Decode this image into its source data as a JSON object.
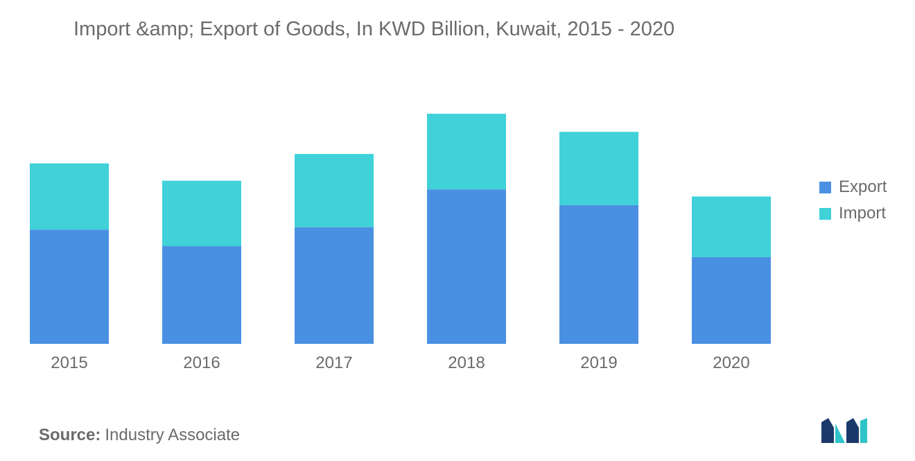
{
  "title": "Import &amp; Export of Goods, In KWD Billion,  Kuwait, 2015 - 2020",
  "source": {
    "label": "Source:",
    "value": "Industry Associate"
  },
  "colors": {
    "export": "#4a90e2",
    "import": "#40d1d9",
    "text": "#6b6b6b",
    "logo_dark": "#1b3a6b",
    "logo_light": "#2ec4c9"
  },
  "chart_data": {
    "type": "bar",
    "stacked": true,
    "categories": [
      "2015",
      "2016",
      "2017",
      "2018",
      "2019",
      "2020"
    ],
    "series": [
      {
        "name": "Export",
        "values": [
          14.5,
          12.4,
          14.8,
          19.6,
          17.6,
          11.0
        ]
      },
      {
        "name": "Import",
        "values": [
          8.4,
          8.3,
          9.3,
          9.6,
          9.3,
          7.7
        ]
      }
    ],
    "ylim": [
      0,
      30
    ],
    "grid": false,
    "legend_position": "right"
  }
}
